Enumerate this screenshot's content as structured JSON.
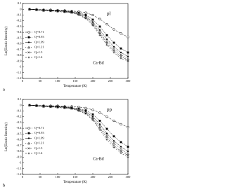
{
  "chart_data": [
    {
      "type": "line",
      "panel_label": "a",
      "annotations": [
        "pl",
        "Ca-Bd"
      ],
      "x_label": "Temperature (K)",
      "y_label": "Ln(Elastic Intensity)",
      "x": [
        20,
        40,
        60,
        80,
        100,
        120,
        140,
        160,
        180,
        200,
        220,
        240,
        260,
        280,
        300
      ],
      "series": [
        {
          "name": "Q=0.71",
          "color": "#000000",
          "marker": "circle",
          "values": [
            0,
            0,
            -0.01,
            -0.01,
            -0.02,
            -0.02,
            -0.03,
            -0.04,
            -0.06,
            -0.1,
            -0.17,
            -0.26,
            -0.35,
            -0.42,
            -0.48
          ]
        },
        {
          "name": "Q=0.93",
          "color": "#000000",
          "marker": "square",
          "values": [
            0,
            -0.01,
            -0.01,
            -0.02,
            -0.02,
            -0.03,
            -0.04,
            -0.06,
            -0.1,
            -0.18,
            -0.3,
            -0.45,
            -0.58,
            -0.68,
            -0.75
          ]
        },
        {
          "name": "Q=1.09",
          "color": "#000000",
          "marker": "diamond",
          "values": [
            0,
            -0.01,
            -0.01,
            -0.02,
            -0.03,
            -0.03,
            -0.05,
            -0.07,
            -0.12,
            -0.22,
            -0.36,
            -0.52,
            -0.65,
            -0.75,
            -0.82
          ]
        },
        {
          "name": "Q=1.21",
          "color": "#000000",
          "marker": "triangle",
          "values": [
            0,
            -0.01,
            -0.02,
            -0.02,
            -0.03,
            -0.04,
            -0.05,
            -0.08,
            -0.13,
            -0.24,
            -0.4,
            -0.56,
            -0.69,
            -0.79,
            -0.86
          ]
        },
        {
          "name": "Q=1.3",
          "color": "#000000",
          "marker": "x",
          "values": [
            0,
            -0.01,
            -0.02,
            -0.03,
            -0.03,
            -0.04,
            -0.06,
            -0.09,
            -0.15,
            -0.26,
            -0.42,
            -0.59,
            -0.72,
            -0.82,
            -0.88
          ]
        },
        {
          "name": "Q=1.4",
          "color": "#000000",
          "marker": "plus",
          "values": [
            0,
            -0.01,
            -0.02,
            -0.03,
            -0.04,
            -0.05,
            -0.06,
            -0.1,
            -0.16,
            -0.28,
            -0.45,
            -0.62,
            -0.75,
            -0.85,
            -0.9
          ]
        }
      ],
      "xlim": [
        0,
        300
      ],
      "xticks": [
        0,
        50,
        100,
        150,
        200,
        250,
        300
      ],
      "ylim": [
        -1.2,
        0.1
      ],
      "yticks": [
        0.1,
        0,
        -0.1,
        -0.2,
        -0.3,
        -0.4,
        -0.5,
        -0.6,
        -0.7,
        -0.8,
        -0.9,
        -1,
        -1.1,
        -1.2
      ]
    },
    {
      "type": "line",
      "panel_label": "b",
      "annotations": [
        "pp",
        "Ca-Bd"
      ],
      "x_label": "Temperature (K)",
      "y_label": "Ln(Elastic Intensity)",
      "x": [
        20,
        40,
        60,
        80,
        100,
        120,
        140,
        160,
        180,
        200,
        220,
        240,
        260,
        280,
        300
      ],
      "series": [
        {
          "name": "Q=0.71",
          "color": "#000000",
          "marker": "circle",
          "values": [
            0,
            0,
            -0.01,
            -0.01,
            -0.01,
            -0.02,
            -0.02,
            -0.03,
            -0.05,
            -0.08,
            -0.13,
            -0.2,
            -0.27,
            -0.33,
            -0.38
          ]
        },
        {
          "name": "Q=0.93",
          "color": "#000000",
          "marker": "square",
          "values": [
            0,
            -0.01,
            -0.01,
            -0.02,
            -0.02,
            -0.03,
            -0.04,
            -0.06,
            -0.09,
            -0.16,
            -0.27,
            -0.41,
            -0.54,
            -0.64,
            -0.72
          ]
        },
        {
          "name": "Q=1.09",
          "color": "#000000",
          "marker": "diamond",
          "values": [
            0,
            -0.01,
            -0.01,
            -0.02,
            -0.03,
            -0.03,
            -0.05,
            -0.07,
            -0.11,
            -0.2,
            -0.33,
            -0.49,
            -0.62,
            -0.72,
            -0.8
          ]
        },
        {
          "name": "Q=1.21",
          "color": "#000000",
          "marker": "triangle",
          "values": [
            0,
            -0.01,
            -0.02,
            -0.02,
            -0.03,
            -0.04,
            -0.05,
            -0.08,
            -0.12,
            -0.22,
            -0.37,
            -0.53,
            -0.66,
            -0.76,
            -0.84
          ]
        },
        {
          "name": "Q=1.3",
          "color": "#000000",
          "marker": "x",
          "values": [
            0,
            -0.01,
            -0.02,
            -0.03,
            -0.03,
            -0.04,
            -0.06,
            -0.09,
            -0.14,
            -0.24,
            -0.4,
            -0.56,
            -0.7,
            -0.8,
            -0.87
          ]
        },
        {
          "name": "Q=1.4",
          "color": "#000000",
          "marker": "plus",
          "values": [
            0,
            -0.01,
            -0.02,
            -0.03,
            -0.04,
            -0.05,
            -0.06,
            -0.1,
            -0.15,
            -0.26,
            -0.43,
            -0.6,
            -0.73,
            -0.83,
            -0.9
          ]
        }
      ],
      "xlim": [
        0,
        300
      ],
      "xticks": [
        0,
        50,
        100,
        150,
        200,
        250,
        300
      ],
      "ylim": [
        -1.2,
        0.1
      ],
      "yticks": [
        0.1,
        0,
        -0.1,
        -0.2,
        -0.3,
        -0.4,
        -0.5,
        -0.6,
        -0.7,
        -0.8,
        -0.9,
        -1,
        -1.1,
        -1.2
      ]
    }
  ]
}
